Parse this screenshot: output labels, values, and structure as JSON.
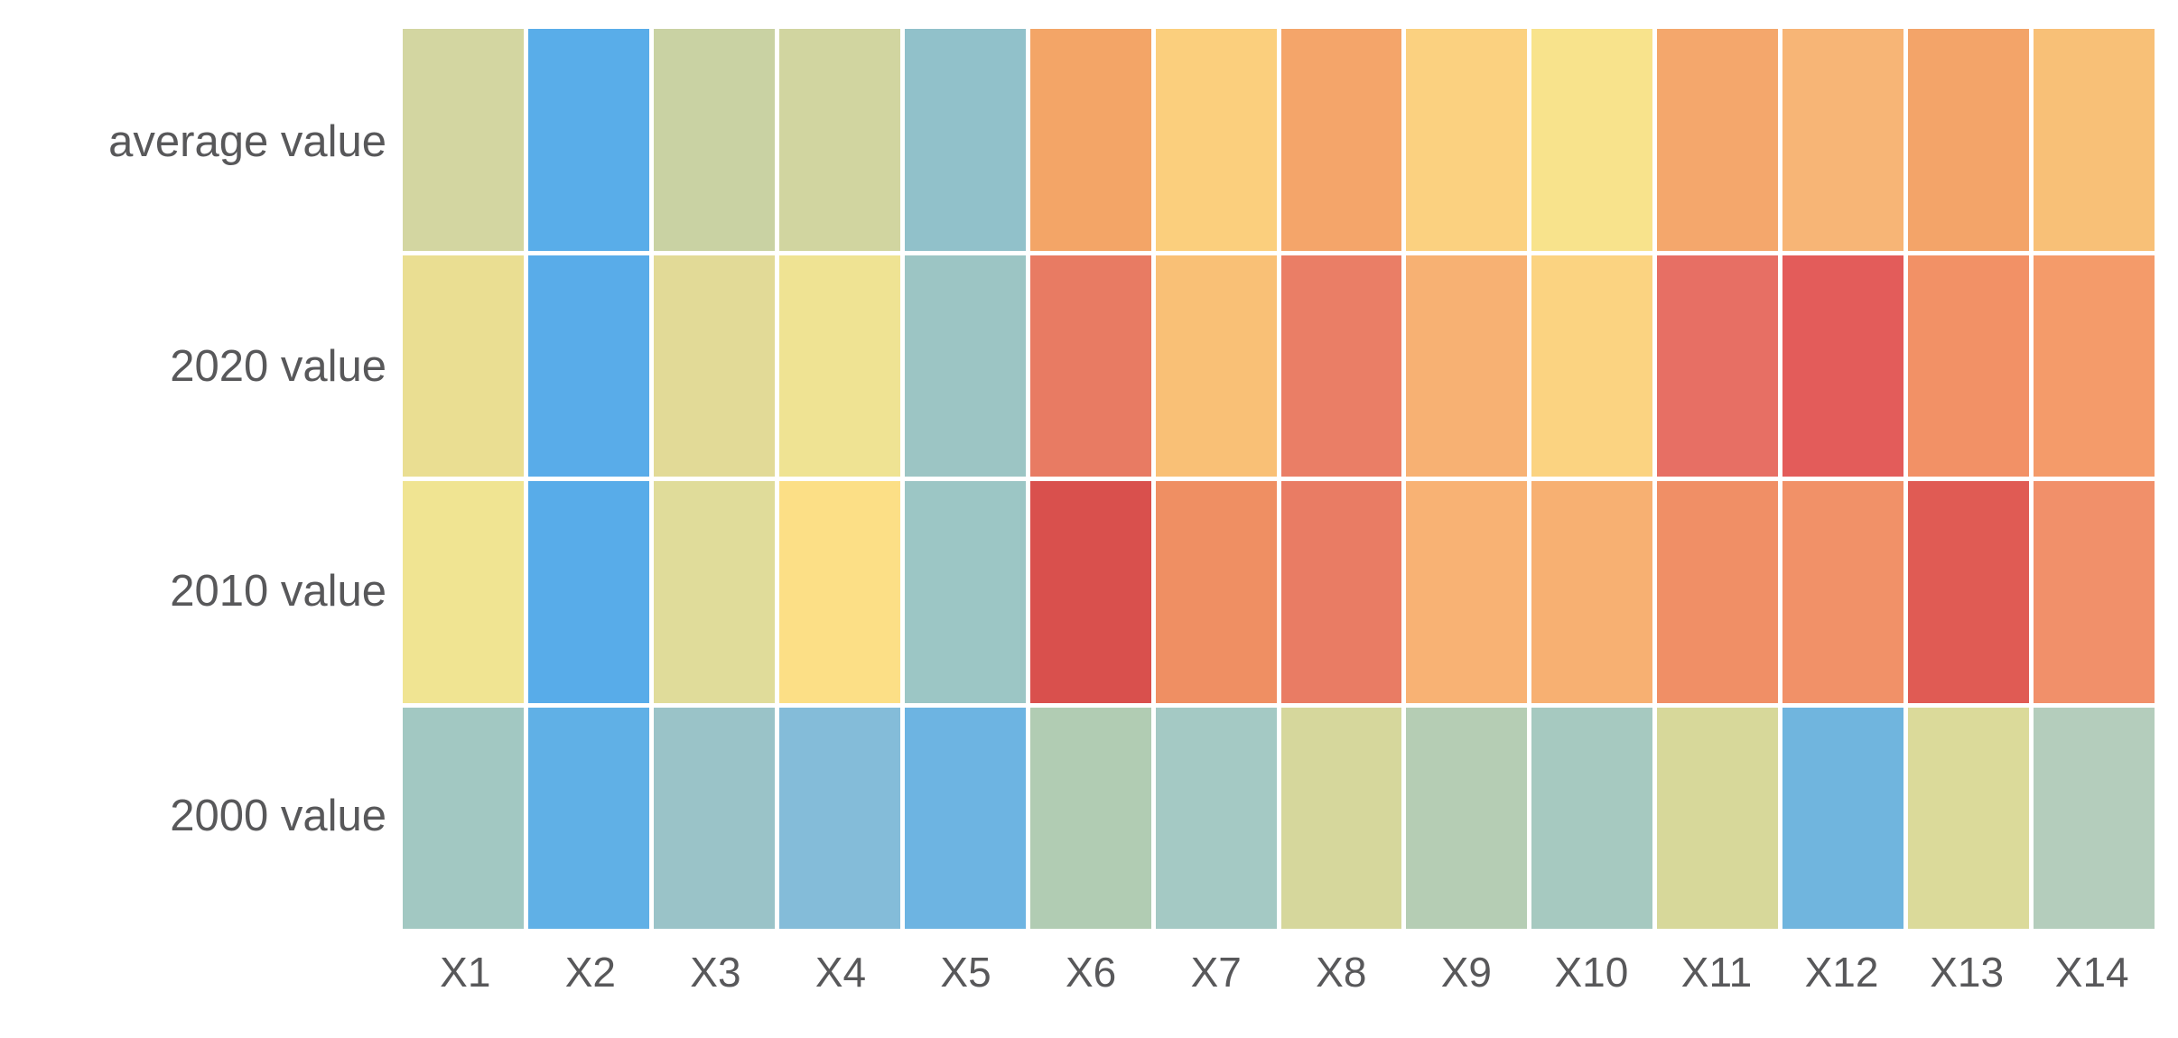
{
  "text_color": "#58585a",
  "background_color": "#ffffff",
  "chart_data": {
    "type": "heatmap",
    "title": "",
    "xlabel": "",
    "ylabel": "",
    "legend": "none",
    "grid_gap_color": "#ffffff",
    "colormap_hint": "RdYlBu reversed: blue = low, yellow = mid, red = high; no numeric labels shown",
    "rows": [
      "average value",
      "2020 value",
      "2010 value",
      "2000 value"
    ],
    "columns": [
      "X1",
      "X2",
      "X3",
      "X4",
      "X5",
      "X6",
      "X7",
      "X8",
      "X9",
      "X10",
      "X11",
      "X12",
      "X13",
      "X14"
    ],
    "cell_colors": [
      [
        "#d3d6a1",
        "#59ade9",
        "#c9d2a3",
        "#d1d5a0",
        "#91c1ca",
        "#f3a567",
        "#fbcf7d",
        "#f4a56a",
        "#fbd180",
        "#f8e38c",
        "#f4a76c",
        "#f7b576",
        "#f3a469",
        "#f8c077"
      ],
      [
        "#eade92",
        "#59ace9",
        "#e2da97",
        "#efe393",
        "#9cc5c4",
        "#e87b63",
        "#f9c076",
        "#ea7e66",
        "#f7b173",
        "#fbd381",
        "#e76f64",
        "#e35c5a",
        "#f29166",
        "#f49b6a"
      ],
      [
        "#f0e492",
        "#58ace9",
        "#e0dc9a",
        "#fcdf86",
        "#9cc6c5",
        "#d9504d",
        "#ef8f63",
        "#e97c64",
        "#f8b274",
        "#f7b072",
        "#f08f66",
        "#f19168",
        "#e05b54",
        "#f1906a"
      ],
      [
        "#a2c8c2",
        "#60b0e6",
        "#9ac3c8",
        "#84bcd9",
        "#6db4e2",
        "#b1ccb3",
        "#a4c9c4",
        "#d6d79c",
        "#b5cdb4",
        "#a6c9c0",
        "#d7d89a",
        "#70b5de",
        "#dbda9a",
        "#b4cdbc"
      ]
    ]
  }
}
